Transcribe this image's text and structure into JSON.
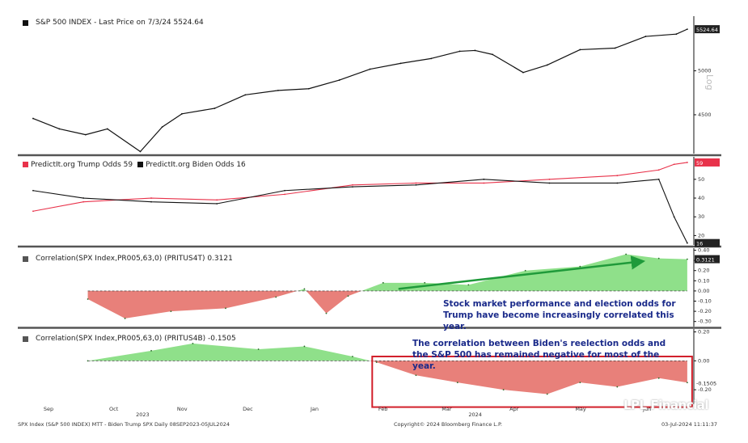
{
  "panels": {
    "spx": {
      "legend": "S&P 500 INDEX - Last Price on 7/3/24 5524.64",
      "last_label": "5524.64",
      "axis_title": "Log"
    },
    "odds": {
      "legend_trump": "PredictIt.org Trump Odds 59",
      "legend_biden": "PredictIt.org Biden Odds 16",
      "trump_label": "59",
      "biden_label": "16"
    },
    "corr_trump": {
      "legend": "Correlation(SPX Index,PR005,63,0) (PRITUS4T) 0.3121",
      "last_label": "0.3121"
    },
    "corr_biden": {
      "legend": "Correlation(SPX Index,PR005,63,0) (PRITUS4B) -0.1505",
      "last_label": "-0.1505"
    }
  },
  "annotations": {
    "trump": "Stock market performance and election odds for Trump have become increasingly correlated this year.",
    "biden": "The correlation between Biden's reelection odds and the S&P 500 has remained negative for most of the year."
  },
  "footer": {
    "left": "SPX Index (S&P 500 INDEX) MTT - Biden Trump SPX  Daily 08SEP2023-05JUL2024",
    "center": "Copyright© 2024 Bloomberg Finance L.P.",
    "right": "03-Jul-2024 11:11:37",
    "brand": "LPL Financial"
  },
  "colors": {
    "spx": "#111111",
    "trump": "#e8324a",
    "biden": "#111111",
    "pos_fill": "#8fe08a",
    "neg_fill": "#e8807a",
    "highlight": "#d21f2a",
    "arrow": "#1f9a3a",
    "annotation": "#1a2a8a"
  },
  "chart_data": [
    {
      "type": "line",
      "title": "S&P 500 INDEX - Last Price on 7/3/24 5524.64",
      "ylabel": "Log",
      "log_scale": true,
      "ylim": [
        4100,
        5700
      ],
      "yticks": [
        4500,
        5000
      ],
      "x_ticks": [
        "Sep",
        "Oct",
        "Nov",
        "Dec",
        "Jan",
        "Feb",
        "Mar",
        "Apr",
        "May",
        "Jun"
      ],
      "x_year_labels": [
        "2023",
        "2024"
      ],
      "x": [
        "2023-09-08",
        "2023-09-20",
        "2023-10-02",
        "2023-10-12",
        "2023-10-27",
        "2023-11-06",
        "2023-11-15",
        "2023-11-30",
        "2023-12-14",
        "2023-12-29",
        "2024-01-12",
        "2024-01-26",
        "2024-02-09",
        "2024-02-23",
        "2024-03-08",
        "2024-03-21",
        "2024-03-28",
        "2024-04-05",
        "2024-04-19",
        "2024-04-30",
        "2024-05-15",
        "2024-05-31",
        "2024-06-14",
        "2024-06-28",
        "2024-07-03"
      ],
      "series": [
        {
          "name": "S&P 500 INDEX",
          "values": [
            4460,
            4350,
            4290,
            4350,
            4120,
            4370,
            4510,
            4570,
            4720,
            4770,
            4790,
            4890,
            5020,
            5090,
            5150,
            5240,
            5250,
            5200,
            4980,
            5070,
            5260,
            5280,
            5430,
            5460,
            5524.64
          ]
        }
      ]
    },
    {
      "type": "line",
      "ylim": [
        15,
        62
      ],
      "yticks": [
        20,
        30,
        40,
        50
      ],
      "x": [
        "2023-09-08",
        "2023-10-01",
        "2023-11-01",
        "2023-12-01",
        "2024-01-01",
        "2024-02-01",
        "2024-03-01",
        "2024-04-01",
        "2024-05-01",
        "2024-06-01",
        "2024-06-20",
        "2024-06-27",
        "2024-07-03"
      ],
      "series": [
        {
          "name": "PredictIt.org Trump Odds",
          "values": [
            33,
            38,
            40,
            39,
            42,
            47,
            48,
            48,
            50,
            52,
            55,
            58,
            59
          ]
        },
        {
          "name": "PredictIt.org Biden Odds",
          "values": [
            44,
            40,
            38,
            37,
            44,
            46,
            47,
            50,
            48,
            48,
            50,
            30,
            16
          ]
        }
      ]
    },
    {
      "type": "area",
      "ylim": [
        -0.35,
        0.42
      ],
      "yticks": [
        -0.3,
        -0.2,
        -0.1,
        0.0,
        0.1,
        0.2,
        0.3,
        0.4
      ],
      "x": [
        "2023-10-03",
        "2023-10-20",
        "2023-11-10",
        "2023-12-05",
        "2023-12-28",
        "2024-01-10",
        "2024-01-20",
        "2024-01-30",
        "2024-02-15",
        "2024-03-05",
        "2024-03-25",
        "2024-04-20",
        "2024-05-15",
        "2024-06-05",
        "2024-06-20",
        "2024-07-03"
      ],
      "series": [
        {
          "name": "Correlation(SPX Index,PR005,63,0) (PRITUS4T)",
          "values": [
            -0.08,
            -0.27,
            -0.2,
            -0.17,
            -0.06,
            0.02,
            -0.22,
            -0.05,
            0.08,
            0.08,
            0.06,
            0.2,
            0.24,
            0.36,
            0.32,
            0.3121
          ]
        }
      ]
    },
    {
      "type": "area",
      "ylim": [
        -0.3,
        0.22
      ],
      "yticks": [
        -0.2,
        0.0,
        0.2
      ],
      "x": [
        "2023-10-03",
        "2023-11-01",
        "2023-11-20",
        "2023-12-20",
        "2024-01-10",
        "2024-02-01",
        "2024-02-12",
        "2024-03-01",
        "2024-03-20",
        "2024-04-10",
        "2024-04-30",
        "2024-05-15",
        "2024-06-01",
        "2024-06-20",
        "2024-07-03"
      ],
      "series": [
        {
          "name": "Correlation(SPX Index,PR005,63,0) (PRITUS4B)",
          "values": [
            0.0,
            0.07,
            0.12,
            0.08,
            0.1,
            0.03,
            -0.01,
            -0.1,
            -0.15,
            -0.2,
            -0.23,
            -0.15,
            -0.18,
            -0.12,
            -0.1505
          ]
        }
      ]
    }
  ]
}
